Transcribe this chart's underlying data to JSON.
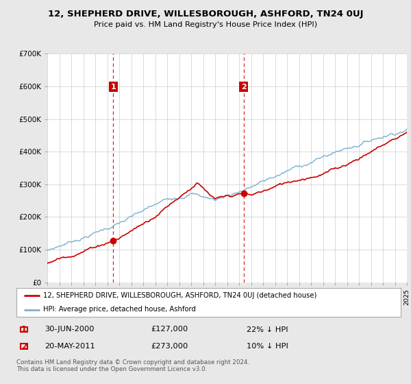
{
  "title": "12, SHEPHERD DRIVE, WILLESBOROUGH, ASHFORD, TN24 0UJ",
  "subtitle": "Price paid vs. HM Land Registry's House Price Index (HPI)",
  "background_color": "#e8e8e8",
  "plot_background": "#ffffff",
  "ylim": [
    0,
    700000
  ],
  "yticks": [
    0,
    100000,
    200000,
    300000,
    400000,
    500000,
    600000,
    700000
  ],
  "ytick_labels": [
    "£0",
    "£100K",
    "£200K",
    "£300K",
    "£400K",
    "£500K",
    "£600K",
    "£700K"
  ],
  "transaction1_date": "30-JUN-2000",
  "transaction1_price": 127000,
  "transaction1_pct": "22% ↓ HPI",
  "transaction1_x": 2000.5,
  "transaction1_y": 127000,
  "transaction2_date": "20-MAY-2011",
  "transaction2_price": 273000,
  "transaction2_pct": "10% ↓ HPI",
  "transaction2_x": 2011.38,
  "transaction2_y": 273000,
  "legend_label1": "12, SHEPHERD DRIVE, WILLESBOROUGH, ASHFORD, TN24 0UJ (detached house)",
  "legend_label2": "HPI: Average price, detached house, Ashford",
  "footer": "Contains HM Land Registry data © Crown copyright and database right 2024.\nThis data is licensed under the Open Government Licence v3.0.",
  "line_color_red": "#cc0000",
  "line_color_blue": "#7ab0d4",
  "vline_color": "#cc0000",
  "grid_color": "#cccccc",
  "xlim_start": 1995,
  "xlim_end": 2025
}
